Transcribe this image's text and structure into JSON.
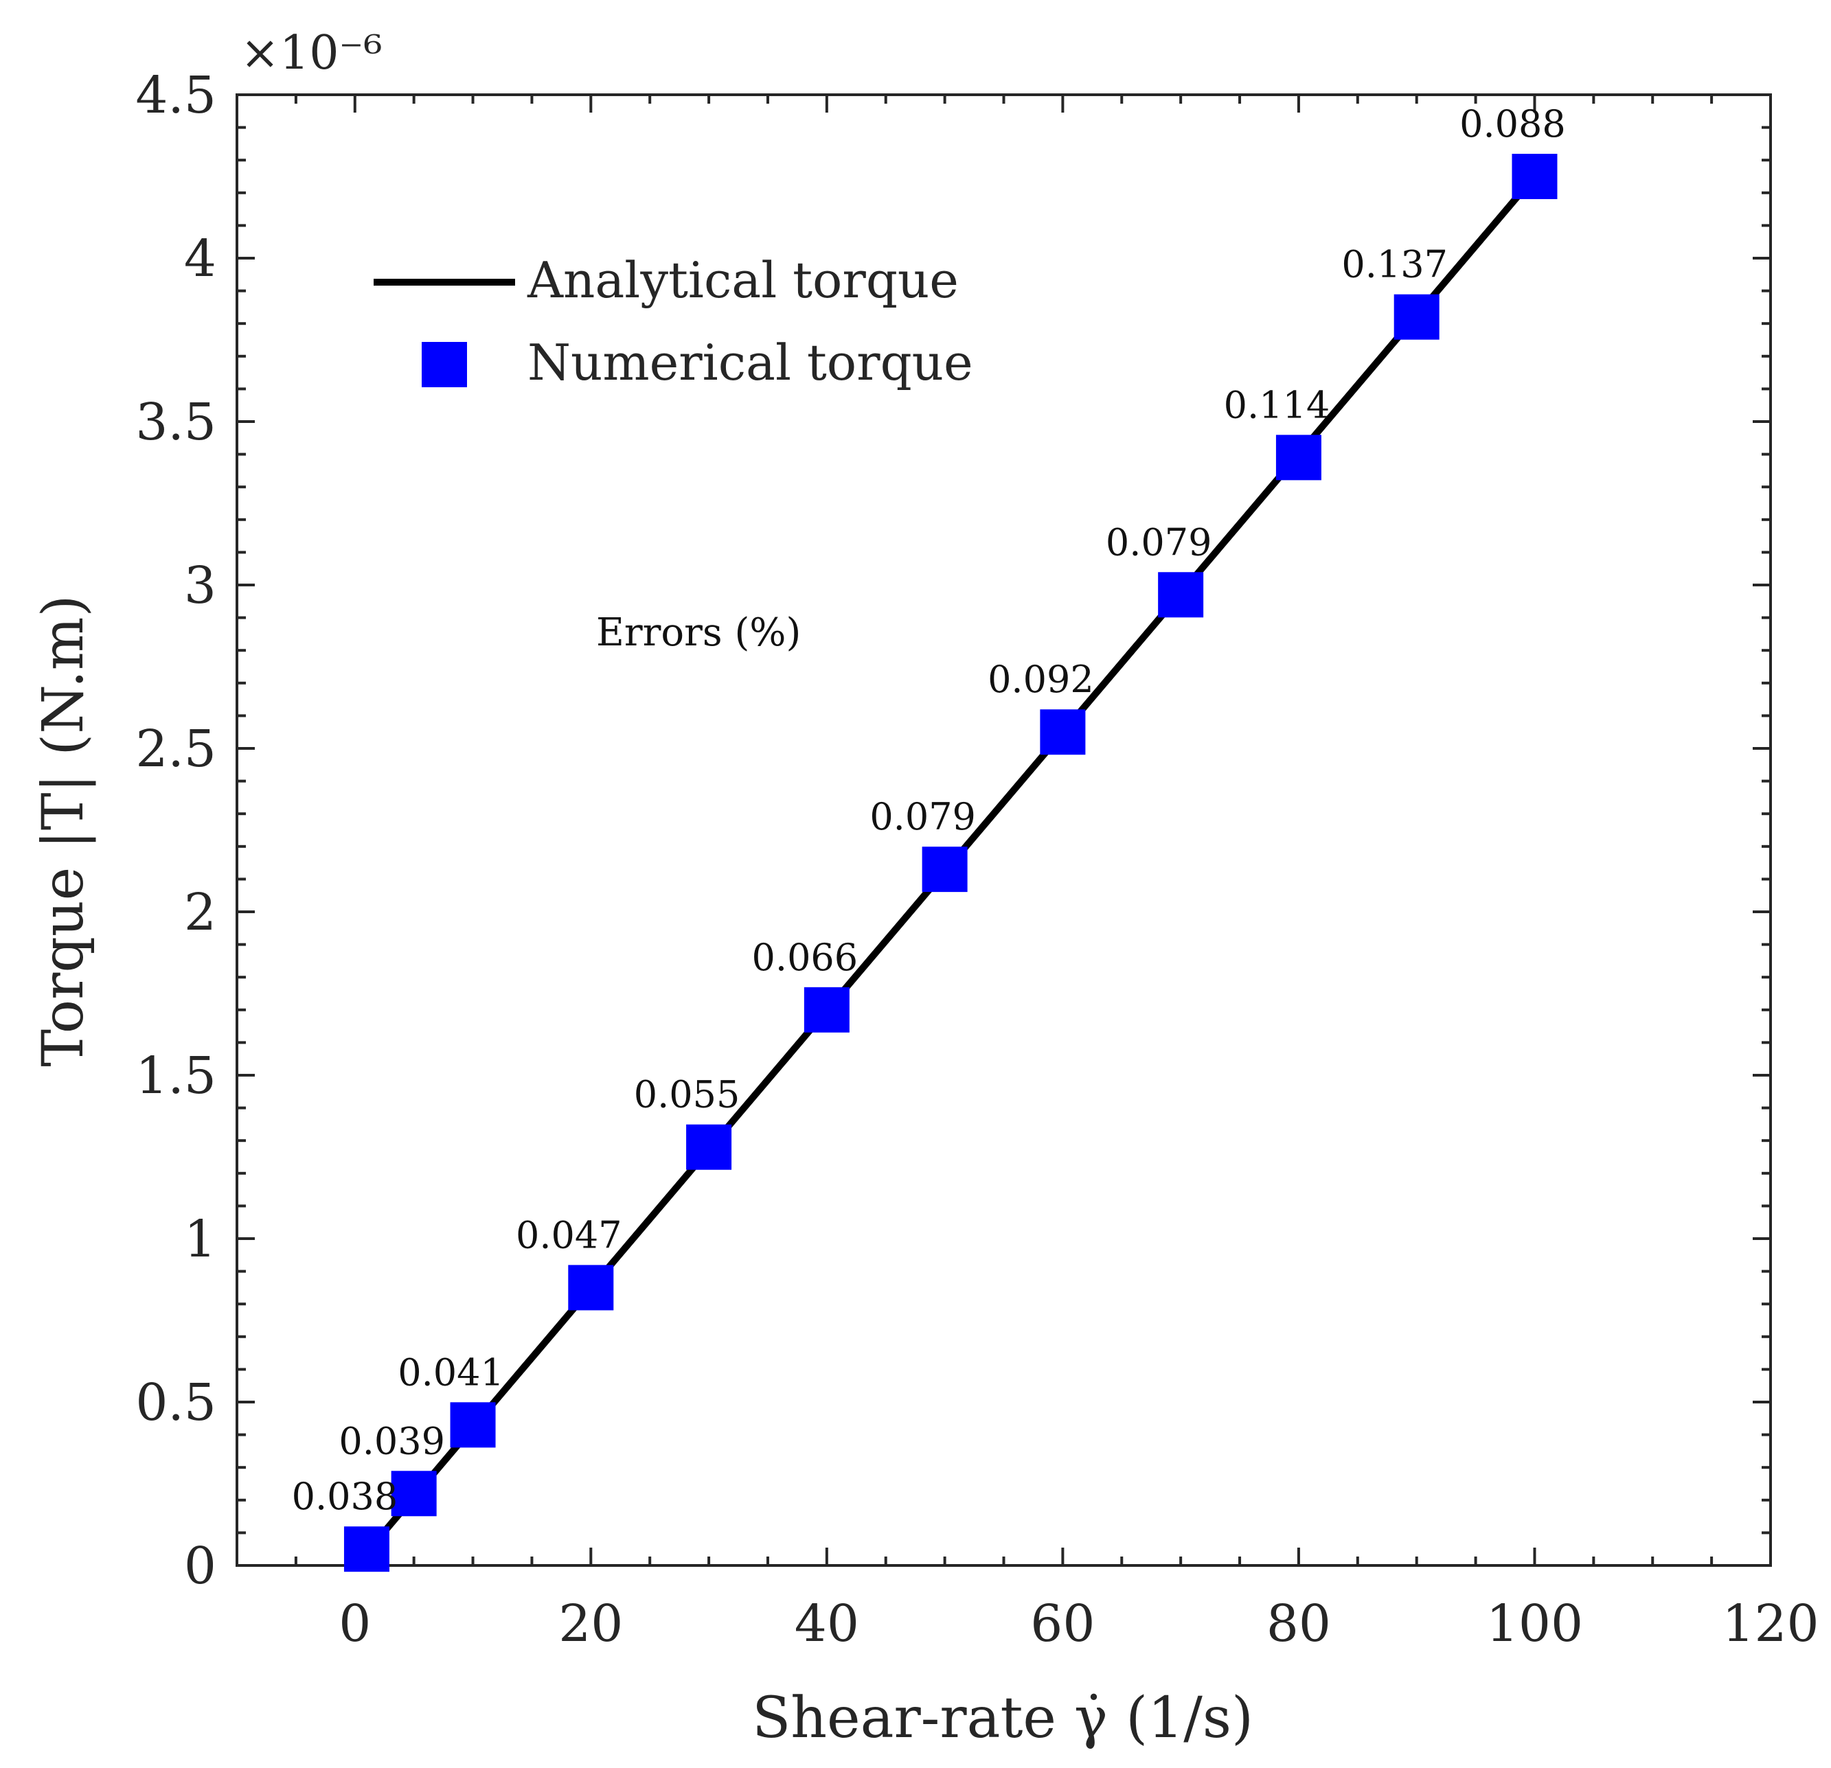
{
  "chart_data": {
    "type": "scatter",
    "title": "",
    "xlabel": "Shear-rate γ̇ (1/s)",
    "ylabel": "Torque |T| (N.m)",
    "y_exponent_label": "×10⁻⁶",
    "xlim": [
      -10,
      120
    ],
    "ylim": [
      0,
      4.5
    ],
    "x_ticks": [
      "0",
      "20",
      "40",
      "60",
      "80",
      "100",
      "120"
    ],
    "y_ticks": [
      "0",
      "0.5",
      "1",
      "1.5",
      "2",
      "2.5",
      "3",
      "3.5",
      "4",
      "4.5"
    ],
    "annotation": "Errors (%)",
    "grid": false,
    "legend_position": "top-left",
    "series": [
      {
        "name": "Analytical torque",
        "kind": "line",
        "color": "#000000",
        "x": [
          1,
          100
        ],
        "y": [
          0.04,
          4.25
        ]
      },
      {
        "name": "Numerical torque",
        "kind": "marker-square",
        "color": "#0000ff",
        "x": [
          1,
          5,
          10,
          20,
          30,
          40,
          50,
          60,
          70,
          80,
          90,
          100
        ],
        "y": [
          0.05,
          0.22,
          0.43,
          0.85,
          1.28,
          1.7,
          2.13,
          2.55,
          2.97,
          3.39,
          3.82,
          4.25
        ],
        "labels": [
          "0.038",
          "0.039",
          "0.041",
          "0.047",
          "0.055",
          "0.066",
          "0.079",
          "0.092",
          "0.079",
          "0.114",
          "0.137",
          "0.088"
        ]
      }
    ]
  }
}
